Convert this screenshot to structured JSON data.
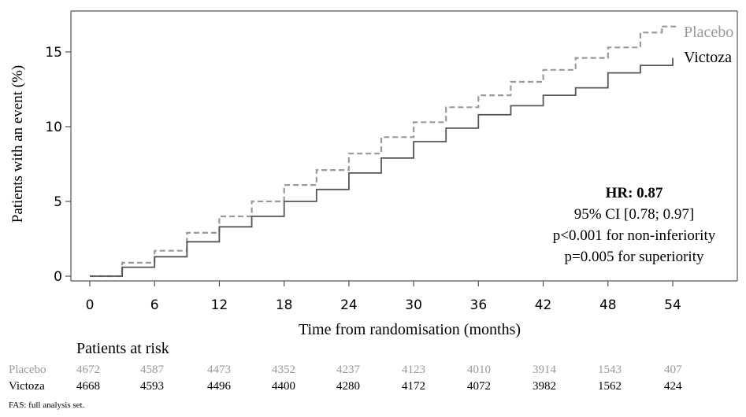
{
  "chart_data": {
    "type": "line",
    "xlabel": "Time from randomisation (months)",
    "ylabel": "Patients with an event (%)",
    "xlim": [
      0,
      54
    ],
    "ylim": [
      0,
      17
    ],
    "x_ticks": [
      "0",
      "6",
      "12",
      "18",
      "24",
      "30",
      "36",
      "42",
      "48",
      "54"
    ],
    "y_ticks": [
      "0",
      "5",
      "10",
      "15"
    ],
    "grid": false,
    "series": [
      {
        "name": "Placebo",
        "color": "#999999",
        "style": "dashed",
        "x": [
          0,
          3,
          6,
          9,
          12,
          15,
          18,
          21,
          24,
          27,
          30,
          33,
          36,
          39,
          42,
          45,
          48,
          51,
          53
        ],
        "values": [
          0,
          0.9,
          1.7,
          2.9,
          4.0,
          5.0,
          6.1,
          7.1,
          8.2,
          9.3,
          10.3,
          11.3,
          12.1,
          13.0,
          13.8,
          14.6,
          15.3,
          16.3,
          16.7
        ]
      },
      {
        "name": "Victoza",
        "color": "#555555",
        "style": "solid",
        "x": [
          0,
          3,
          6,
          9,
          12,
          15,
          18,
          21,
          24,
          27,
          30,
          33,
          36,
          39,
          42,
          45,
          48,
          51,
          54
        ],
        "values": [
          0,
          0.6,
          1.3,
          2.3,
          3.3,
          4.0,
          5.0,
          5.8,
          6.9,
          7.9,
          9.0,
          9.9,
          10.8,
          11.4,
          12.1,
          12.6,
          13.6,
          14.1,
          14.6
        ]
      }
    ],
    "annotation": {
      "hr": "HR: 0.87",
      "ci": "95% CI [0.78; 0.97]",
      "noninf": "p<0.001 for non-inferiority",
      "sup": "p=0.005 for superiority"
    },
    "risk_table": {
      "title": "Patients at risk",
      "rows": [
        {
          "label": "Placebo",
          "color": "#999999",
          "values": [
            "4672",
            "4587",
            "4473",
            "4352",
            "4237",
            "4123",
            "4010",
            "3914",
            "1543",
            "407"
          ]
        },
        {
          "label": "Victoza",
          "color": "#000000",
          "values": [
            "4668",
            "4593",
            "4496",
            "4400",
            "4280",
            "4172",
            "4072",
            "3982",
            "1562",
            "424"
          ]
        }
      ]
    },
    "footnote": "FAS: full analysis set."
  }
}
